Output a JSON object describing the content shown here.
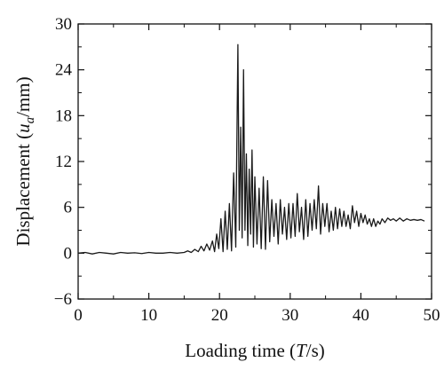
{
  "chart_data": {
    "type": "line",
    "title": "",
    "xlabel": {
      "prefix": "Loading time (",
      "italic": "T",
      "suffix": "/s)"
    },
    "ylabel": {
      "prefix": "Displacement (",
      "italic": "u",
      "sub": "a",
      "suffix": "/mm)"
    },
    "xlim": [
      0,
      50
    ],
    "ylim": [
      -6,
      30
    ],
    "x_ticks": [
      0,
      10,
      20,
      30,
      40,
      50
    ],
    "y_ticks": [
      -6,
      0,
      6,
      12,
      18,
      24,
      30
    ],
    "x_tick_labels": [
      "0",
      "10",
      "20",
      "30",
      "40",
      "50"
    ],
    "y_tick_labels": [
      "−6",
      "0",
      "6",
      "12",
      "18",
      "24",
      "30"
    ],
    "grid": false,
    "series": [
      {
        "color": "#1a1a1a",
        "x": [
          0,
          1,
          2,
          3,
          4,
          5,
          6,
          7,
          8,
          9,
          10,
          11,
          12,
          13,
          14,
          15,
          15.5,
          16,
          16.5,
          17,
          17.4,
          17.8,
          18.2,
          18.6,
          19,
          19.3,
          19.6,
          19.9,
          20.2,
          20.5,
          20.8,
          21.1,
          21.4,
          21.7,
          22.0,
          22.3,
          22.6,
          22.8,
          23.0,
          23.2,
          23.4,
          23.6,
          23.8,
          24.0,
          24.2,
          24.4,
          24.6,
          24.8,
          25.0,
          25.3,
          25.6,
          25.9,
          26.2,
          26.5,
          26.8,
          27.1,
          27.4,
          27.7,
          28.0,
          28.3,
          28.6,
          28.9,
          29.2,
          29.5,
          29.8,
          30.1,
          30.4,
          30.7,
          31.0,
          31.3,
          31.6,
          31.9,
          32.2,
          32.5,
          32.8,
          33.1,
          33.4,
          33.7,
          34.0,
          34.3,
          34.6,
          34.9,
          35.2,
          35.5,
          35.8,
          36.1,
          36.4,
          36.7,
          37.0,
          37.3,
          37.6,
          37.9,
          38.2,
          38.5,
          38.8,
          39.1,
          39.4,
          39.7,
          40.0,
          40.3,
          40.6,
          40.9,
          41.2,
          41.5,
          41.8,
          42.1,
          42.4,
          42.7,
          43.0,
          43.4,
          43.8,
          44.2,
          44.6,
          45.0,
          45.5,
          46.0,
          46.5,
          47.0,
          47.5,
          48.0,
          48.5,
          49.0
        ],
        "y": [
          0,
          0.1,
          -0.1,
          0.1,
          0,
          -0.1,
          0.1,
          0,
          0.05,
          -0.05,
          0.1,
          0,
          0,
          0.1,
          0,
          0.1,
          0.3,
          0.1,
          0.5,
          0.2,
          0.9,
          0.3,
          1.2,
          0.4,
          1.6,
          0.2,
          2.5,
          0.6,
          4.5,
          0.2,
          5.5,
          0.5,
          6.5,
          0.3,
          10.5,
          0.8,
          27.3,
          3.0,
          16.5,
          2.0,
          24.0,
          3.0,
          13.0,
          1.0,
          11.0,
          2.5,
          13.5,
          0.8,
          10.0,
          1.2,
          8.5,
          0.6,
          10.0,
          0.5,
          9.5,
          1.5,
          7.0,
          2.2,
          6.5,
          1.2,
          7.0,
          2.5,
          6.0,
          1.8,
          6.5,
          2.0,
          6.5,
          2.2,
          7.8,
          2.8,
          6.0,
          1.8,
          7.0,
          2.2,
          6.5,
          3.0,
          7.0,
          3.2,
          8.8,
          2.5,
          6.5,
          3.5,
          6.5,
          2.8,
          5.5,
          3.0,
          6.0,
          3.2,
          5.8,
          3.5,
          5.5,
          3.5,
          5.0,
          3.2,
          6.2,
          4.0,
          5.5,
          3.5,
          5.2,
          4.0,
          5.0,
          3.8,
          4.5,
          3.5,
          4.5,
          3.5,
          4.2,
          3.8,
          4.5,
          4.0,
          4.6,
          4.3,
          4.5,
          4.2,
          4.6,
          4.2,
          4.5,
          4.3,
          4.4,
          4.3,
          4.4,
          4.2
        ]
      }
    ]
  }
}
